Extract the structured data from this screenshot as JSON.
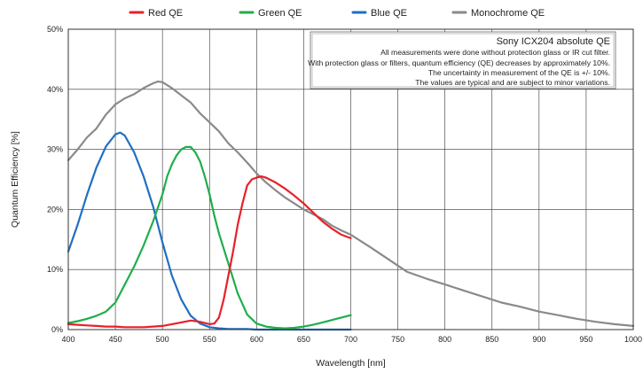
{
  "chart_data": {
    "type": "line",
    "title": "",
    "xlabel": "Wavelength [nm]",
    "ylabel": "Quantum Efficiency [%]",
    "xlim": [
      400,
      1000
    ],
    "ylim": [
      0,
      50
    ],
    "x_ticks": [
      "400",
      "450",
      "500",
      "550",
      "600",
      "650",
      "700",
      "750",
      "800",
      "850",
      "900",
      "950",
      "1000"
    ],
    "y_ticks": [
      "0%",
      "10%",
      "20%",
      "30%",
      "40%",
      "50%"
    ],
    "grid": true,
    "legend_position": "top",
    "series": [
      {
        "name": "Red QE",
        "color": "#e8202a",
        "x": [
          400,
          410,
          420,
          430,
          440,
          450,
          460,
          470,
          480,
          490,
          500,
          510,
          520,
          530,
          540,
          550,
          555,
          560,
          565,
          570,
          575,
          580,
          585,
          590,
          595,
          600,
          605,
          610,
          620,
          630,
          640,
          650,
          660,
          670,
          680,
          690,
          700
        ],
        "y": [
          0.9,
          0.8,
          0.7,
          0.6,
          0.5,
          0.5,
          0.4,
          0.4,
          0.4,
          0.5,
          0.6,
          0.9,
          1.2,
          1.5,
          1.3,
          0.9,
          1.0,
          2.0,
          5.0,
          9.0,
          13.0,
          17.5,
          21.0,
          24.0,
          25.0,
          25.3,
          25.5,
          25.3,
          24.5,
          23.5,
          22.3,
          21.0,
          19.5,
          18.0,
          16.8,
          15.8,
          15.2
        ]
      },
      {
        "name": "Green QE",
        "color": "#1fae4b",
        "x": [
          400,
          410,
          420,
          430,
          440,
          450,
          460,
          470,
          480,
          490,
          500,
          505,
          510,
          515,
          520,
          525,
          530,
          535,
          540,
          545,
          550,
          555,
          560,
          570,
          580,
          590,
          600,
          610,
          620,
          630,
          640,
          650,
          660,
          670,
          680,
          690,
          700
        ],
        "y": [
          1.1,
          1.4,
          1.8,
          2.3,
          3.0,
          4.5,
          7.5,
          10.5,
          14.0,
          18.0,
          22.5,
          25.5,
          27.5,
          29.0,
          30.0,
          30.4,
          30.4,
          29.5,
          28.0,
          25.5,
          22.5,
          19.0,
          16.0,
          11.0,
          6.0,
          2.5,
          1.0,
          0.5,
          0.3,
          0.2,
          0.3,
          0.5,
          0.8,
          1.2,
          1.6,
          2.0,
          2.4
        ]
      },
      {
        "name": "Blue QE",
        "color": "#1f6fc1",
        "x": [
          400,
          410,
          420,
          430,
          440,
          450,
          455,
          460,
          470,
          480,
          490,
          500,
          510,
          520,
          530,
          540,
          550,
          560,
          570,
          580,
          590,
          600,
          620,
          640,
          660,
          680,
          700
        ],
        "y": [
          13.0,
          17.5,
          22.5,
          27.0,
          30.5,
          32.5,
          32.8,
          32.3,
          29.5,
          25.5,
          20.5,
          14.5,
          9.0,
          5.0,
          2.3,
          1.0,
          0.4,
          0.2,
          0.1,
          0.1,
          0.1,
          0.0,
          0.0,
          0.0,
          0.0,
          0.0,
          0.0
        ]
      },
      {
        "name": "Monochrome QE",
        "color": "#8a8a8a",
        "x": [
          400,
          410,
          420,
          430,
          440,
          450,
          460,
          470,
          480,
          490,
          495,
          500,
          510,
          520,
          530,
          540,
          550,
          560,
          570,
          580,
          590,
          600,
          610,
          620,
          630,
          640,
          650,
          660,
          670,
          680,
          690,
          700,
          720,
          740,
          760,
          780,
          800,
          820,
          840,
          860,
          880,
          900,
          920,
          940,
          960,
          980,
          1000
        ],
        "y": [
          28.2,
          30.0,
          32.0,
          33.5,
          35.8,
          37.5,
          38.5,
          39.2,
          40.2,
          41.0,
          41.3,
          41.2,
          40.2,
          39.0,
          37.8,
          36.0,
          34.5,
          33.0,
          31.0,
          29.5,
          27.8,
          26.0,
          24.5,
          23.2,
          22.0,
          21.0,
          20.0,
          19.2,
          18.4,
          17.3,
          16.5,
          15.8,
          13.8,
          11.7,
          9.6,
          8.5,
          7.5,
          6.5,
          5.5,
          4.5,
          3.8,
          3.0,
          2.4,
          1.8,
          1.3,
          0.9,
          0.6
        ]
      }
    ],
    "annotation": {
      "title": "Sony ICX204 absolute QE",
      "lines": [
        "All measurements were done without protection glass or IR cut filter.",
        "With protection glass or filters, quantum efficiency (QE) decreases by approximately 10%.",
        "The uncertainty in measurement of the QE is +/- 10%.",
        "The values are typical and are subject to minor variations."
      ]
    }
  }
}
